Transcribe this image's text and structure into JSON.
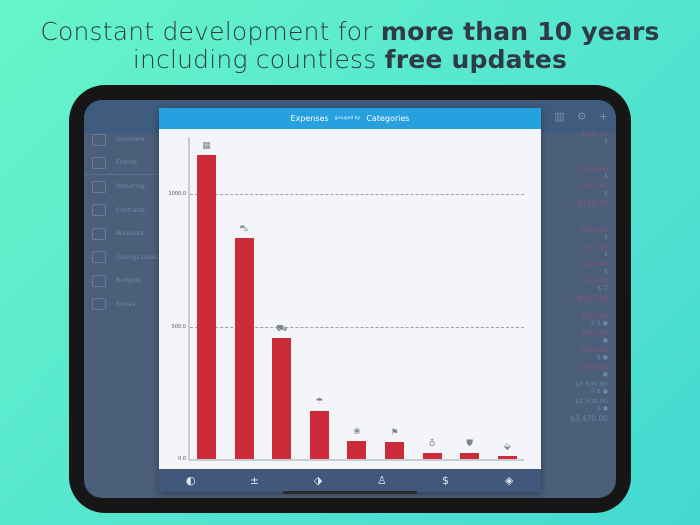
{
  "headline": {
    "line1_regular": "Constant development for ",
    "line1_bold": "more than 10 years",
    "line2_regular": "including countless ",
    "line2_bold": "free updates"
  },
  "sidebar": {
    "items": [
      {
        "label": "Overview",
        "icon": "home-icon"
      },
      {
        "label": "Entries",
        "icon": "list-icon"
      },
      {
        "label": "Recurring",
        "icon": "recurring-icon"
      },
      {
        "label": "Contracts",
        "icon": "contract-icon"
      },
      {
        "label": "Accounts",
        "icon": "bank-icon"
      },
      {
        "label": "Savings Goals",
        "icon": "piggy-bank-icon"
      },
      {
        "label": "Budgets",
        "icon": "budget-icon"
      },
      {
        "label": "Extras",
        "icon": "gear-icon"
      }
    ]
  },
  "top_icons": [
    {
      "name": "chart-icon",
      "glyph": "▥"
    },
    {
      "name": "gear-icon",
      "glyph": "⚙"
    },
    {
      "name": "plus-icon",
      "glyph": "+"
    }
  ],
  "entries_list": [
    {
      "amount": "- $186.11",
      "sub": "$",
      "type": "neg"
    },
    {
      "amount": "",
      "sub": "",
      "type": "spacer"
    },
    {
      "amount": "",
      "sub": "",
      "type": "spacer"
    },
    {
      "amount": "- $100.00",
      "sub": "$",
      "type": "neg"
    },
    {
      "amount": "- $65.45",
      "sub": "$",
      "type": "neg"
    },
    {
      "amount": "- $165.45",
      "sub": "",
      "type": "total"
    },
    {
      "amount": "",
      "sub": "",
      "type": "spacer"
    },
    {
      "amount": "",
      "sub": "",
      "type": "spacer"
    },
    {
      "amount": "- $500.00",
      "sub": "$",
      "type": "neg"
    },
    {
      "amount": "- $11.00",
      "sub": "$",
      "type": "neg"
    },
    {
      "amount": "- $23.00",
      "sub": "$",
      "type": "neg"
    },
    {
      "amount": "- $23.00",
      "sub": "$ ⛉",
      "type": "neg"
    },
    {
      "amount": "- $557.00",
      "sub": "",
      "type": "total"
    },
    {
      "amount": "",
      "sub": "",
      "type": "spacer"
    },
    {
      "amount": "- $350.00",
      "sub": "⚲ $ ●",
      "type": "neg"
    },
    {
      "amount": "- $650.00",
      "sub": "●",
      "type": "neg"
    },
    {
      "amount": "- $350.00",
      "sub": "$ ●",
      "type": "neg"
    },
    {
      "amount": "- $180.00",
      "sub": "●",
      "type": "neg"
    },
    {
      "amount": "$2,500.00",
      "sub": "⚲ $ ●",
      "type": "pos"
    },
    {
      "amount": "$2,500.00",
      "sub": "$ ●",
      "type": "pos"
    },
    {
      "amount": "$3,470.00",
      "sub": "",
      "type": "pos-total"
    }
  ],
  "modal": {
    "title_metric": "Expenses",
    "grouped_by_label": "grouped by",
    "grouping": "Categories"
  },
  "chart_data": {
    "type": "bar",
    "title": "Expenses grouped by Categories",
    "xlabel": "",
    "ylabel": "",
    "categories": [
      "Housing",
      "Car",
      "Shopping",
      "Insurance",
      "Pets",
      "Leisure",
      "Baby",
      "Clothing",
      "Misc"
    ],
    "category_icons": [
      "building-icon",
      "car-icon",
      "shopping-icon",
      "umbrella-icon",
      "paw-icon",
      "golf-icon",
      "baby-icon",
      "shirt-icon",
      "tag-icon"
    ],
    "values": [
      1147,
      834,
      457,
      181,
      68,
      64,
      23,
      23,
      11
    ],
    "ylim": [
      0,
      1200
    ],
    "yticks": [
      "0.0",
      "500.0",
      "1000.0"
    ],
    "grid": true,
    "bar_color": "#cc2b3a"
  },
  "tabbar": [
    {
      "name": "tab-overview",
      "glyph": "◐",
      "icon": "pie-icon"
    },
    {
      "name": "tab-plusminus",
      "glyph": "±",
      "icon": "plus-minus-icon"
    },
    {
      "name": "tab-tags",
      "glyph": "⬗",
      "icon": "tag-icon"
    },
    {
      "name": "tab-person",
      "glyph": "♙",
      "icon": "person-icon"
    },
    {
      "name": "tab-currency",
      "glyph": "$",
      "icon": "dollar-icon"
    },
    {
      "name": "tab-layers",
      "glyph": "◈",
      "icon": "layers-icon"
    }
  ],
  "colors": {
    "accent": "#27a0df",
    "bar": "#cc2b3a",
    "tabbar": "#42587a"
  }
}
